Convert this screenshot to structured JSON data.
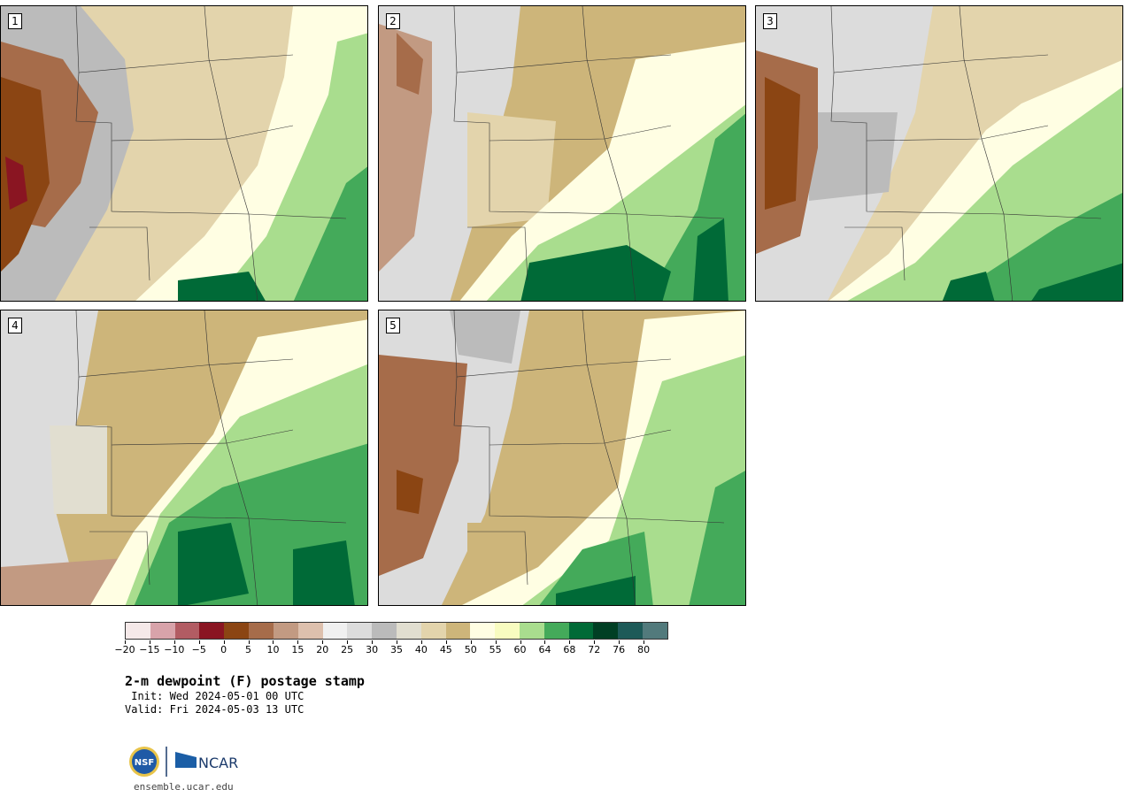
{
  "figure": {
    "title": "2-m dewpoint (F) postage stamp",
    "init": " Init: Wed 2024-05-01 00 UTC",
    "valid": "Valid: Fri 2024-05-03 13 UTC",
    "site": "ensemble.ucar.edu",
    "logo_text": "NCAR",
    "nsf_text": "NSF"
  },
  "panels": [
    {
      "label": "1"
    },
    {
      "label": "2"
    },
    {
      "label": "3"
    },
    {
      "label": "4"
    },
    {
      "label": "5"
    }
  ],
  "colorbar": {
    "tick_labels": [
      "−20",
      "−15",
      "−10",
      "−5",
      "0",
      "5",
      "10",
      "15",
      "20",
      "25",
      "30",
      "35",
      "40",
      "45",
      "50",
      "55",
      "60",
      "64",
      "68",
      "72",
      "76",
      "80"
    ],
    "colors": [
      "#f5e9e9",
      "#d8a3aa",
      "#b25c63",
      "#8a1522",
      "#8b4513",
      "#a66c4a",
      "#c29a82",
      "#ddc0ad",
      "#f0f0f0",
      "#dcdcdc",
      "#bbbbbb",
      "#e1ded0",
      "#e3d4ac",
      "#cdb57a",
      "#fffee3",
      "#f8fcc0",
      "#a9dd8e",
      "#44aa5a",
      "#006a37",
      "#003f24",
      "#1d5a58",
      "#527a7c"
    ]
  }
}
